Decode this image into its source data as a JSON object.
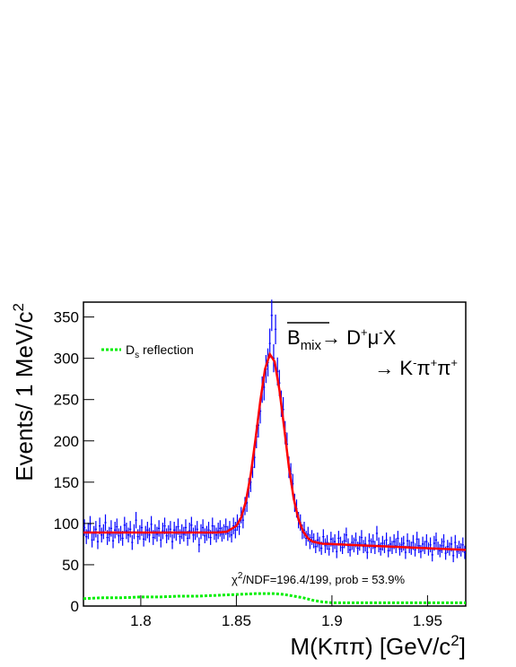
{
  "chart_data": {
    "type": "line",
    "ylabel": [
      "Events/ 1 MeV/c",
      "2"
    ],
    "xlabel": [
      "M(Kππ) [GeV/c",
      "2",
      "]"
    ],
    "annotation": {
      "line1": [
        "B",
        "mix",
        "→ D",
        "+",
        "μ",
        "-",
        "X"
      ],
      "line2": [
        "→ K",
        "-",
        "π",
        "+",
        "π",
        "+"
      ]
    },
    "fit_text": [
      "χ",
      "2",
      "/NDF=196.4/199, prob = 53.9%"
    ],
    "legend": "top-left",
    "xlim": [
      1.77,
      1.97
    ],
    "ylim": [
      0,
      368
    ],
    "xticks": [
      1.8,
      1.85,
      1.9,
      1.95
    ],
    "yticks": [
      0,
      50,
      100,
      150,
      200,
      250,
      300,
      350
    ],
    "series": [
      {
        "color": "#0000ff",
        "x": [
          1.7705,
          1.7715,
          1.7725,
          1.7735,
          1.7745,
          1.7755,
          1.7765,
          1.7775,
          1.7785,
          1.7795,
          1.7805,
          1.7815,
          1.7825,
          1.7835,
          1.7845,
          1.7855,
          1.7865,
          1.7875,
          1.7885,
          1.7895,
          1.7905,
          1.7915,
          1.7925,
          1.7935,
          1.7945,
          1.7955,
          1.7965,
          1.7975,
          1.7985,
          1.7995,
          1.8005,
          1.8015,
          1.8025,
          1.8035,
          1.8045,
          1.8055,
          1.8065,
          1.8075,
          1.8085,
          1.8095,
          1.8105,
          1.8115,
          1.8125,
          1.8135,
          1.8145,
          1.8155,
          1.8165,
          1.8175,
          1.8185,
          1.8195,
          1.8205,
          1.8215,
          1.8225,
          1.8235,
          1.8245,
          1.8255,
          1.8265,
          1.8275,
          1.8285,
          1.8295,
          1.8305,
          1.8315,
          1.8325,
          1.8335,
          1.8345,
          1.8355,
          1.8365,
          1.8375,
          1.8385,
          1.8395,
          1.8405,
          1.8415,
          1.8425,
          1.8435,
          1.8445,
          1.8455,
          1.8465,
          1.8475,
          1.8485,
          1.8495,
          1.8505,
          1.8515,
          1.8525,
          1.8535,
          1.8545,
          1.8555,
          1.8565,
          1.8575,
          1.8585,
          1.8595,
          1.8605,
          1.8615,
          1.8625,
          1.8635,
          1.8645,
          1.8655,
          1.8665,
          1.8675,
          1.8685,
          1.8695,
          1.8705,
          1.8715,
          1.8725,
          1.8735,
          1.8745,
          1.8755,
          1.8765,
          1.8775,
          1.8785,
          1.8795,
          1.8805,
          1.8815,
          1.8825,
          1.8835,
          1.8845,
          1.8855,
          1.8865,
          1.8875,
          1.8885,
          1.8895,
          1.8905,
          1.8915,
          1.8925,
          1.8935,
          1.8945,
          1.8955,
          1.8965,
          1.8975,
          1.8985,
          1.8995,
          1.9005,
          1.9015,
          1.9025,
          1.9035,
          1.9045,
          1.9055,
          1.9065,
          1.9075,
          1.9085,
          1.9095,
          1.9105,
          1.9115,
          1.9125,
          1.9135,
          1.9145,
          1.9155,
          1.9165,
          1.9175,
          1.9185,
          1.9195,
          1.9205,
          1.9215,
          1.9225,
          1.9235,
          1.9245,
          1.9255,
          1.9265,
          1.9275,
          1.9285,
          1.9295,
          1.9305,
          1.9315,
          1.9325,
          1.9335,
          1.9345,
          1.9355,
          1.9365,
          1.9375,
          1.9385,
          1.9395,
          1.9405,
          1.9415,
          1.9425,
          1.9435,
          1.9445,
          1.9455,
          1.9465,
          1.9475,
          1.9485,
          1.9495,
          1.9505,
          1.9515,
          1.9525,
          1.9535,
          1.9545,
          1.9555,
          1.9565,
          1.9575,
          1.9585,
          1.9595,
          1.9605,
          1.9615,
          1.9625,
          1.9635,
          1.9645,
          1.9655,
          1.9665,
          1.9675,
          1.9685,
          1.9695
        ],
        "values": [
          95,
          84,
          91,
          99,
          80,
          88,
          93,
          78,
          97,
          86,
          90,
          101,
          83,
          87,
          94,
          79,
          92,
          96,
          85,
          88,
          82,
          98,
          91,
          86,
          93,
          77,
          90,
          104,
          84,
          89,
          95,
          81,
          88,
          92,
          86,
          99,
          83,
          90,
          87,
          94,
          80,
          91,
          97,
          85,
          89,
          93,
          78,
          92,
          88,
          96,
          84,
          90,
          87,
          95,
          82,
          91,
          98,
          86,
          89,
          93,
          74,
          90,
          95,
          85,
          88,
          92,
          83,
          97,
          89,
          86,
          91,
          94,
          87,
          90,
          96,
          88,
          93,
          86,
          97,
          92,
          101,
          96,
          110,
          104,
          121,
          125,
          143,
          150,
          168,
          180,
          205,
          219,
          236,
          262,
          265,
          287,
          295,
          318,
          352,
          300,
          335,
          284,
          270,
          245,
          238,
          210,
          196,
          168,
          160,
          148,
          125,
          118,
          104,
          101,
          90,
          92,
          82,
          87,
          78,
          83,
          79,
          72,
          80,
          75,
          70,
          84,
          73,
          77,
          69,
          81,
          74,
          78,
          66,
          82,
          75,
          71,
          79,
          86,
          73,
          68,
          77,
          74,
          80,
          70,
          76,
          83,
          72,
          75,
          65,
          79,
          73,
          78,
          71,
          88,
          74,
          69,
          76,
          72,
          80,
          67,
          75,
          71,
          78,
          73,
          82,
          69,
          74,
          76,
          65,
          79,
          72,
          70,
          77,
          68,
          81,
          73,
          66,
          75,
          71,
          78,
          69,
          74,
          62,
          76,
          80,
          70,
          67,
          73,
          78,
          64,
          72,
          69,
          75,
          61,
          77,
          66,
          71,
          68,
          74,
          65
        ],
        "errors": [
          10,
          9,
          10,
          10,
          9,
          9,
          10,
          9,
          10,
          9,
          9,
          10,
          9,
          9,
          10,
          9,
          10,
          10,
          9,
          9,
          9,
          10,
          10,
          9,
          10,
          9,
          9,
          10,
          9,
          9,
          10,
          9,
          9,
          10,
          9,
          10,
          9,
          9,
          9,
          10,
          9,
          10,
          10,
          9,
          9,
          10,
          9,
          10,
          9,
          10,
          9,
          9,
          9,
          10,
          9,
          10,
          10,
          9,
          9,
          10,
          9,
          9,
          10,
          9,
          9,
          10,
          9,
          10,
          9,
          9,
          10,
          10,
          9,
          9,
          10,
          9,
          10,
          9,
          10,
          10,
          10,
          10,
          10,
          10,
          11,
          11,
          12,
          12,
          13,
          13,
          14,
          15,
          15,
          16,
          16,
          17,
          17,
          18,
          19,
          17,
          18,
          17,
          16,
          16,
          15,
          14,
          14,
          13,
          13,
          12,
          11,
          11,
          10,
          10,
          9,
          10,
          9,
          9,
          9,
          9,
          9,
          8,
          9,
          9,
          8,
          9,
          9,
          9,
          8,
          9,
          9,
          9,
          8,
          9,
          9,
          8,
          9,
          9,
          9,
          8,
          9,
          9,
          9,
          8,
          9,
          9,
          8,
          9,
          8,
          9,
          9,
          9,
          8,
          9,
          9,
          8,
          9,
          8,
          9,
          8,
          9,
          8,
          9,
          9,
          9,
          8,
          9,
          9,
          8,
          9,
          8,
          8,
          9,
          8,
          9,
          9,
          8,
          9,
          8,
          9,
          8,
          9,
          8,
          9,
          9,
          8,
          8,
          9,
          9,
          8,
          8,
          8,
          9,
          8,
          9,
          8,
          8,
          8,
          9,
          8
        ]
      },
      {
        "color": "#ff0000",
        "x": [
          1.77,
          1.78,
          1.79,
          1.8,
          1.81,
          1.82,
          1.83,
          1.84,
          1.845,
          1.85,
          1.8525,
          1.855,
          1.8575,
          1.86,
          1.8625,
          1.865,
          1.8675,
          1.87,
          1.8725,
          1.875,
          1.8775,
          1.88,
          1.8825,
          1.885,
          1.8875,
          1.89,
          1.895,
          1.9,
          1.91,
          1.92,
          1.93,
          1.94,
          1.95,
          1.96,
          1.97
        ],
        "values": [
          89,
          89,
          89,
          89,
          89,
          89,
          89,
          89,
          90,
          97,
          107,
          127,
          159,
          202,
          248,
          287,
          305,
          296,
          262,
          216,
          168,
          130,
          105,
          90,
          82,
          78,
          75.5,
          75,
          74,
          73,
          72,
          71,
          70,
          69,
          68
        ]
      },
      {
        "name": [
          "D",
          "s",
          " reflection"
        ],
        "color": "#00ee00",
        "dash": true,
        "x": [
          1.77,
          1.78,
          1.79,
          1.8,
          1.81,
          1.82,
          1.83,
          1.84,
          1.85,
          1.86,
          1.87,
          1.875,
          1.88,
          1.885,
          1.89,
          1.895,
          1.9,
          1.91,
          1.92,
          1.93,
          1.94,
          1.95,
          1.96,
          1.97
        ],
        "values": [
          9,
          10,
          10,
          11,
          11,
          12,
          12,
          13,
          14,
          15,
          15,
          14,
          12,
          10,
          7,
          5,
          4,
          4,
          4,
          4,
          4,
          4,
          4,
          4
        ]
      }
    ]
  }
}
